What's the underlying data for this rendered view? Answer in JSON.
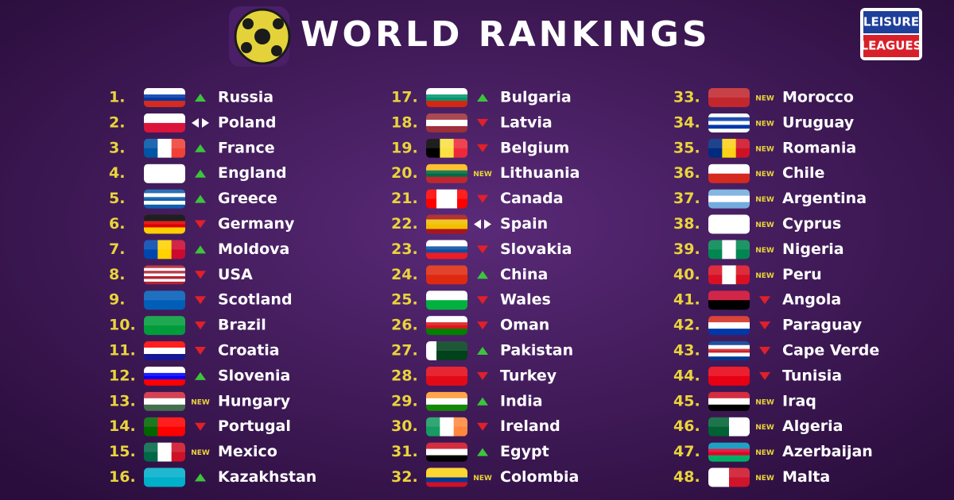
{
  "header": {
    "title": "WORLD RANKINGS",
    "logo_top": "LEISURE",
    "logo_bottom": "LEAGUES"
  },
  "rankings": [
    {
      "rank": "1.",
      "country": "Russia",
      "movement": "up"
    },
    {
      "rank": "2.",
      "country": "Poland",
      "movement": "same"
    },
    {
      "rank": "3.",
      "country": "France",
      "movement": "up"
    },
    {
      "rank": "4.",
      "country": "England",
      "movement": "up"
    },
    {
      "rank": "5.",
      "country": "Greece",
      "movement": "up"
    },
    {
      "rank": "6.",
      "country": "Germany",
      "movement": "down"
    },
    {
      "rank": "7.",
      "country": "Moldova",
      "movement": "up"
    },
    {
      "rank": "8.",
      "country": "USA",
      "movement": "down"
    },
    {
      "rank": "9.",
      "country": "Scotland",
      "movement": "down"
    },
    {
      "rank": "10.",
      "country": "Brazil",
      "movement": "down"
    },
    {
      "rank": "11.",
      "country": "Croatia",
      "movement": "down"
    },
    {
      "rank": "12.",
      "country": "Slovenia",
      "movement": "up"
    },
    {
      "rank": "13.",
      "country": "Hungary",
      "movement": "NEW"
    },
    {
      "rank": "14.",
      "country": "Portugal",
      "movement": "down"
    },
    {
      "rank": "15.",
      "country": "Mexico",
      "movement": "NEW"
    },
    {
      "rank": "16.",
      "country": "Kazakhstan",
      "movement": "up"
    },
    {
      "rank": "17.",
      "country": "Bulgaria",
      "movement": "up"
    },
    {
      "rank": "18.",
      "country": "Latvia",
      "movement": "down"
    },
    {
      "rank": "19.",
      "country": "Belgium",
      "movement": "down"
    },
    {
      "rank": "20.",
      "country": "Lithuania",
      "movement": "NEW"
    },
    {
      "rank": "21.",
      "country": "Canada",
      "movement": "down"
    },
    {
      "rank": "22.",
      "country": "Spain",
      "movement": "same"
    },
    {
      "rank": "23.",
      "country": "Slovakia",
      "movement": "down"
    },
    {
      "rank": "24.",
      "country": "China",
      "movement": "up"
    },
    {
      "rank": "25.",
      "country": "Wales",
      "movement": "down"
    },
    {
      "rank": "26.",
      "country": "Oman",
      "movement": "down"
    },
    {
      "rank": "27.",
      "country": "Pakistan",
      "movement": "up"
    },
    {
      "rank": "28.",
      "country": "Turkey",
      "movement": "down"
    },
    {
      "rank": "29.",
      "country": "India",
      "movement": "up"
    },
    {
      "rank": "30.",
      "country": "Ireland",
      "movement": "down"
    },
    {
      "rank": "31.",
      "country": "Egypt",
      "movement": "up"
    },
    {
      "rank": "32.",
      "country": "Colombia",
      "movement": "NEW"
    },
    {
      "rank": "33.",
      "country": "Morocco",
      "movement": "NEW"
    },
    {
      "rank": "34.",
      "country": "Uruguay",
      "movement": "NEW"
    },
    {
      "rank": "35.",
      "country": "Romania",
      "movement": "NEW"
    },
    {
      "rank": "36.",
      "country": "Chile",
      "movement": "NEW"
    },
    {
      "rank": "37.",
      "country": "Argentina",
      "movement": "NEW"
    },
    {
      "rank": "38.",
      "country": "Cyprus",
      "movement": "NEW"
    },
    {
      "rank": "39.",
      "country": "Nigeria",
      "movement": "NEW"
    },
    {
      "rank": "40.",
      "country": "Peru",
      "movement": "NEW"
    },
    {
      "rank": "41.",
      "country": "Angola",
      "movement": "down"
    },
    {
      "rank": "42.",
      "country": "Paraguay",
      "movement": "down"
    },
    {
      "rank": "43.",
      "country": "Cape Verde",
      "movement": "down"
    },
    {
      "rank": "44.",
      "country": "Tunisia",
      "movement": "down"
    },
    {
      "rank": "45.",
      "country": "Iraq",
      "movement": "NEW"
    },
    {
      "rank": "46.",
      "country": "Algeria",
      "movement": "NEW"
    },
    {
      "rank": "47.",
      "country": "Azerbaijan",
      "movement": "NEW"
    },
    {
      "rank": "48.",
      "country": "Malta",
      "movement": "NEW"
    }
  ]
}
